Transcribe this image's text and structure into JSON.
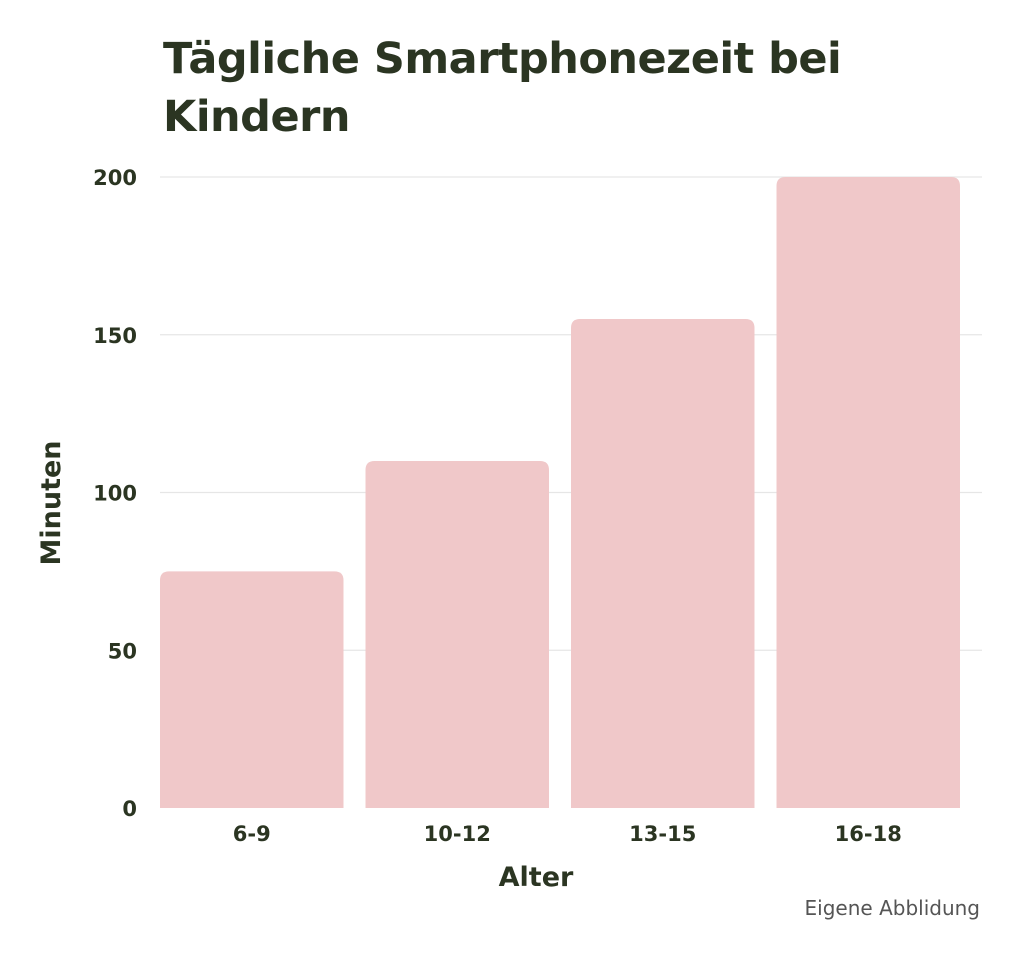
{
  "chart_data": {
    "type": "bar",
    "title": "Tägliche Smartphonezeit bei Kindern",
    "xlabel": "Alter",
    "ylabel": "Minuten",
    "categories": [
      "6-9",
      "10-12",
      "13-15",
      "16-18"
    ],
    "values": [
      75,
      110,
      155,
      200
    ],
    "ylim": [
      0,
      200
    ],
    "yticks": [
      0,
      50,
      100,
      150,
      200
    ],
    "grid": true,
    "legend": "none",
    "bar_color": "#f0c8c9",
    "grid_color": "#e6e6e6",
    "text_color": "#2b3522"
  },
  "source_note": "Eigene Abblidung"
}
